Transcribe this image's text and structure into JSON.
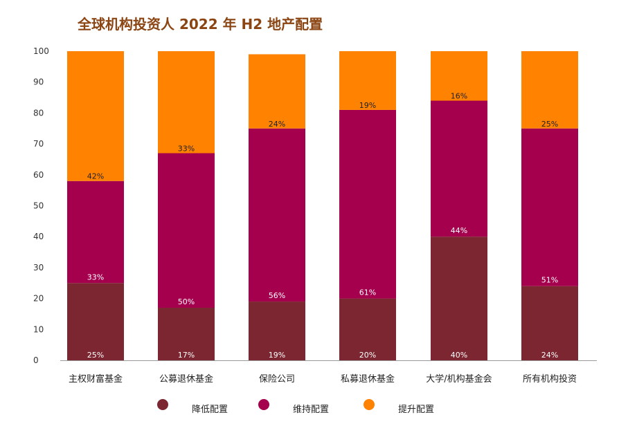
{
  "colors": {
    "title": "#8B4513",
    "decrease": "#7B2630",
    "maintain": "#A5004D",
    "increase": "#FF8200",
    "label_dark": "#222222",
    "label_light": "#FFFFFF",
    "axis": "#999999"
  },
  "chart_data": {
    "type": "bar",
    "stacked": true,
    "title": "全球机构投资人 2022 年 H2 地产配置",
    "categories": [
      "主权财富基金",
      "公募退休基金",
      "保险公司",
      "私募退休基金",
      "大学/机构基金会",
      "所有机构投资"
    ],
    "series": [
      {
        "name": "降低配置",
        "values": [
          25,
          17,
          19,
          20,
          40,
          24
        ],
        "labels": [
          "25%",
          "17%",
          "19%",
          "20%",
          "40%",
          "24%"
        ]
      },
      {
        "name": "维持配置",
        "values": [
          33,
          50,
          56,
          61,
          44,
          51
        ],
        "labels": [
          "33%",
          "50%",
          "56%",
          "61%",
          "44%",
          "51%"
        ]
      },
      {
        "name": "提升配置",
        "values": [
          42,
          33,
          24,
          19,
          16,
          25
        ],
        "labels": [
          "42%",
          "33%",
          "24%",
          "19%",
          "16%",
          "25%"
        ]
      }
    ],
    "ylim": [
      0,
      100
    ],
    "yticks": [
      0,
      10,
      20,
      30,
      40,
      50,
      60,
      70,
      80,
      90,
      100
    ],
    "xlabel": "",
    "ylabel": "",
    "legend_position": "bottom",
    "grid": false
  }
}
